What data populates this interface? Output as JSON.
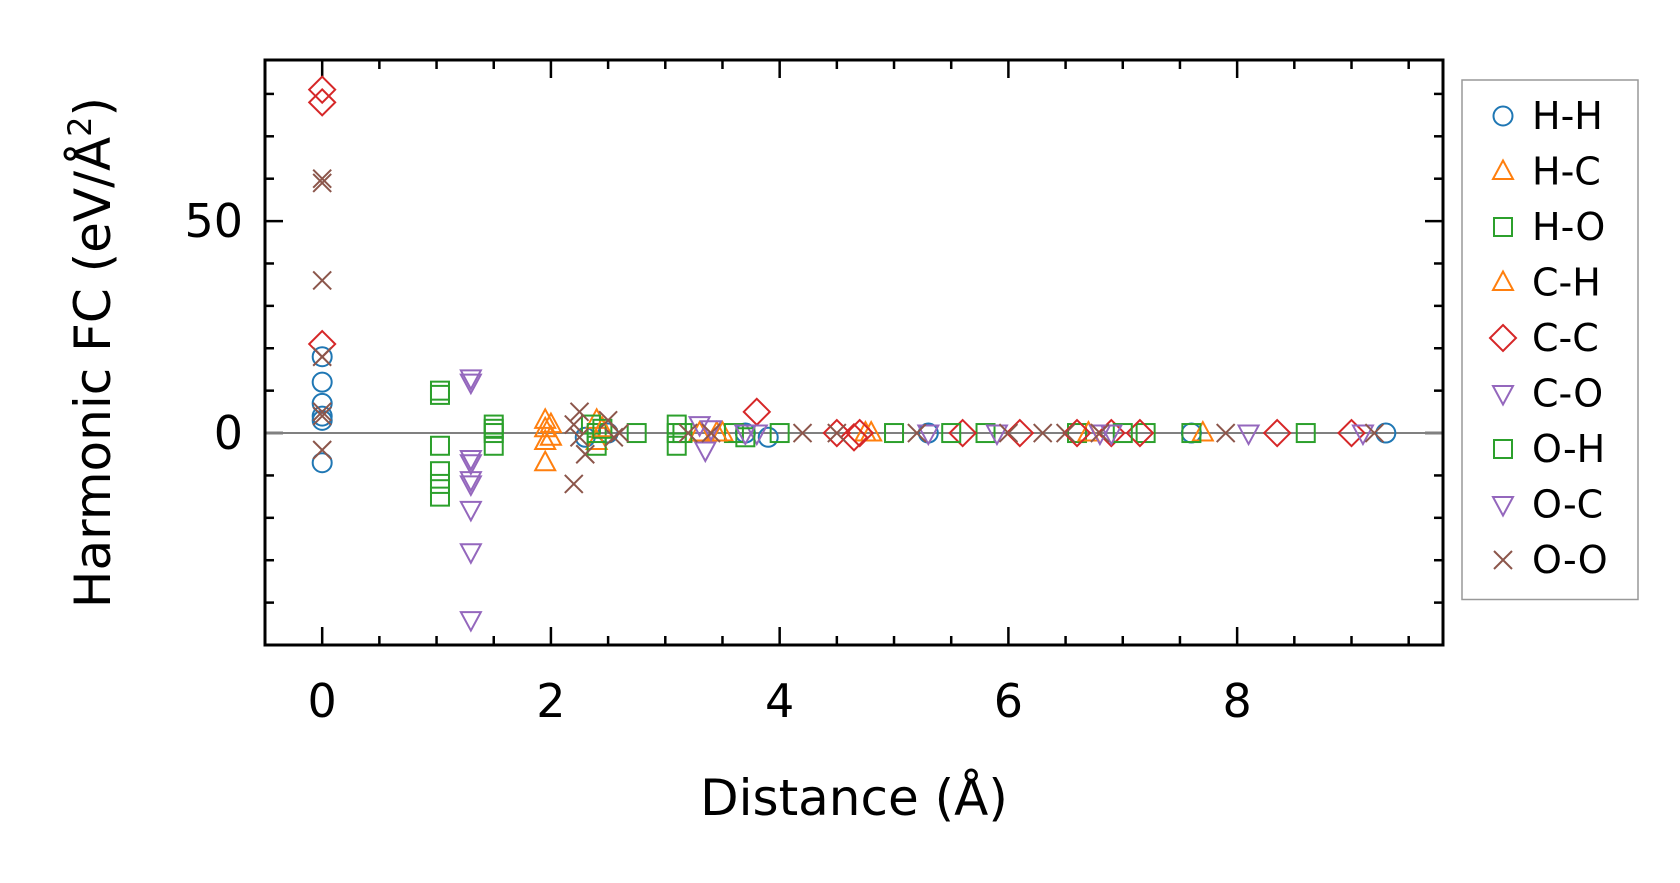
{
  "chart_data": {
    "type": "scatter",
    "xlabel": "Distance (Å)",
    "ylabel_main": "Harmonic FC (eV/Å",
    "ylabel_sup": "2",
    "ylabel_close": ")",
    "xlim": [
      -0.5,
      9.8
    ],
    "ylim": [
      -50,
      88
    ],
    "xticks": [
      0,
      2,
      4,
      6,
      8
    ],
    "yticks": [
      0,
      50
    ],
    "x_minor_step": 0.5,
    "y_minor_step": 10,
    "zero_line": true,
    "grid": false,
    "legend_position": "outside-right",
    "series": [
      {
        "name": "H-H",
        "marker": "circle",
        "color": "#1f77b4",
        "points": [
          [
            0,
            18
          ],
          [
            0,
            12
          ],
          [
            0,
            7
          ],
          [
            0,
            4
          ],
          [
            0,
            3
          ],
          [
            0,
            -7
          ],
          [
            2.3,
            -1
          ],
          [
            2.5,
            0
          ],
          [
            3.9,
            -1
          ],
          [
            3.7,
            0
          ],
          [
            5.3,
            0
          ],
          [
            7.6,
            0
          ],
          [
            9.3,
            0
          ]
        ]
      },
      {
        "name": "H-C",
        "marker": "triangle-up",
        "color": "#ff7f0e",
        "points": [
          [
            1.95,
            3
          ],
          [
            1.95,
            1
          ],
          [
            1.95,
            -2
          ],
          [
            1.95,
            -7
          ],
          [
            2.4,
            3
          ],
          [
            2.4,
            -2
          ],
          [
            3.3,
            0
          ],
          [
            3.5,
            0
          ],
          [
            4.8,
            0
          ],
          [
            7.7,
            0
          ]
        ]
      },
      {
        "name": "H-O",
        "marker": "square",
        "color": "#2ca02c",
        "points": [
          [
            1.03,
            10
          ],
          [
            1.03,
            9
          ],
          [
            1.03,
            -3
          ],
          [
            1.03,
            -9
          ],
          [
            1.03,
            -12
          ],
          [
            1.03,
            -15
          ],
          [
            1.5,
            2
          ],
          [
            1.5,
            0
          ],
          [
            1.5,
            -3
          ],
          [
            2.35,
            2
          ],
          [
            2.4,
            0
          ],
          [
            2.4,
            -3
          ],
          [
            2.75,
            0
          ],
          [
            3.1,
            2
          ],
          [
            3.1,
            0
          ],
          [
            3.1,
            -3
          ],
          [
            3.6,
            0
          ],
          [
            4.0,
            0
          ],
          [
            5.0,
            0
          ],
          [
            5.8,
            0
          ],
          [
            6.6,
            0
          ],
          [
            7.2,
            0
          ],
          [
            8.6,
            0
          ]
        ]
      },
      {
        "name": "C-H",
        "marker": "triangle-up",
        "color": "#ff7f0e",
        "points": [
          [
            2.0,
            2
          ],
          [
            2.0,
            -1
          ],
          [
            2.45,
            1
          ],
          [
            3.45,
            0
          ],
          [
            4.75,
            0
          ],
          [
            6.7,
            0
          ]
        ]
      },
      {
        "name": "C-C",
        "marker": "diamond",
        "color": "#d62728",
        "points": [
          [
            0,
            81
          ],
          [
            0,
            78
          ],
          [
            0,
            21
          ],
          [
            3.8,
            5
          ],
          [
            4.5,
            0
          ],
          [
            4.65,
            -1
          ],
          [
            4.7,
            0
          ],
          [
            5.6,
            0
          ],
          [
            6.1,
            0
          ],
          [
            6.6,
            0
          ],
          [
            6.9,
            0
          ],
          [
            7.15,
            0
          ],
          [
            8.35,
            0
          ],
          [
            9.0,
            0
          ]
        ]
      },
      {
        "name": "C-O",
        "marker": "triangle-down",
        "color": "#9467bd",
        "points": [
          [
            1.3,
            13
          ],
          [
            1.3,
            -6
          ],
          [
            1.3,
            -11
          ],
          [
            1.3,
            -18
          ],
          [
            1.3,
            -28
          ],
          [
            3.3,
            2
          ],
          [
            3.35,
            -4
          ],
          [
            3.8,
            0
          ],
          [
            5.3,
            0
          ],
          [
            6.8,
            0
          ]
        ]
      },
      {
        "name": "O-H",
        "marker": "square",
        "color": "#2ca02c",
        "points": [
          [
            1.5,
            1
          ],
          [
            2.45,
            1
          ],
          [
            3.15,
            0
          ],
          [
            3.7,
            -1
          ],
          [
            5.5,
            0
          ],
          [
            7.0,
            0
          ],
          [
            7.6,
            0
          ]
        ]
      },
      {
        "name": "O-C",
        "marker": "triangle-down",
        "color": "#9467bd",
        "points": [
          [
            1.3,
            12
          ],
          [
            1.3,
            -7
          ],
          [
            1.3,
            -12
          ],
          [
            1.3,
            -44
          ],
          [
            3.4,
            1
          ],
          [
            3.7,
            0
          ],
          [
            5.9,
            0
          ],
          [
            6.9,
            0
          ],
          [
            8.1,
            0
          ],
          [
            9.1,
            0
          ]
        ]
      },
      {
        "name": "O-O",
        "marker": "x",
        "color": "#8c564b",
        "points": [
          [
            0,
            59
          ],
          [
            0,
            60
          ],
          [
            0,
            36
          ],
          [
            0,
            18
          ],
          [
            0,
            5
          ],
          [
            0,
            4
          ],
          [
            0,
            -4
          ],
          [
            2.2,
            -12
          ],
          [
            2.2,
            2
          ],
          [
            2.25,
            5
          ],
          [
            2.25,
            -1
          ],
          [
            2.3,
            -5
          ],
          [
            2.5,
            3
          ],
          [
            2.55,
            -1
          ],
          [
            2.6,
            0
          ],
          [
            3.2,
            0
          ],
          [
            3.4,
            0
          ],
          [
            4.2,
            0
          ],
          [
            4.5,
            0
          ],
          [
            5.2,
            0
          ],
          [
            6.0,
            0
          ],
          [
            6.3,
            0
          ],
          [
            6.5,
            0
          ],
          [
            6.8,
            0
          ],
          [
            7.9,
            0
          ],
          [
            9.2,
            0
          ]
        ]
      }
    ]
  }
}
